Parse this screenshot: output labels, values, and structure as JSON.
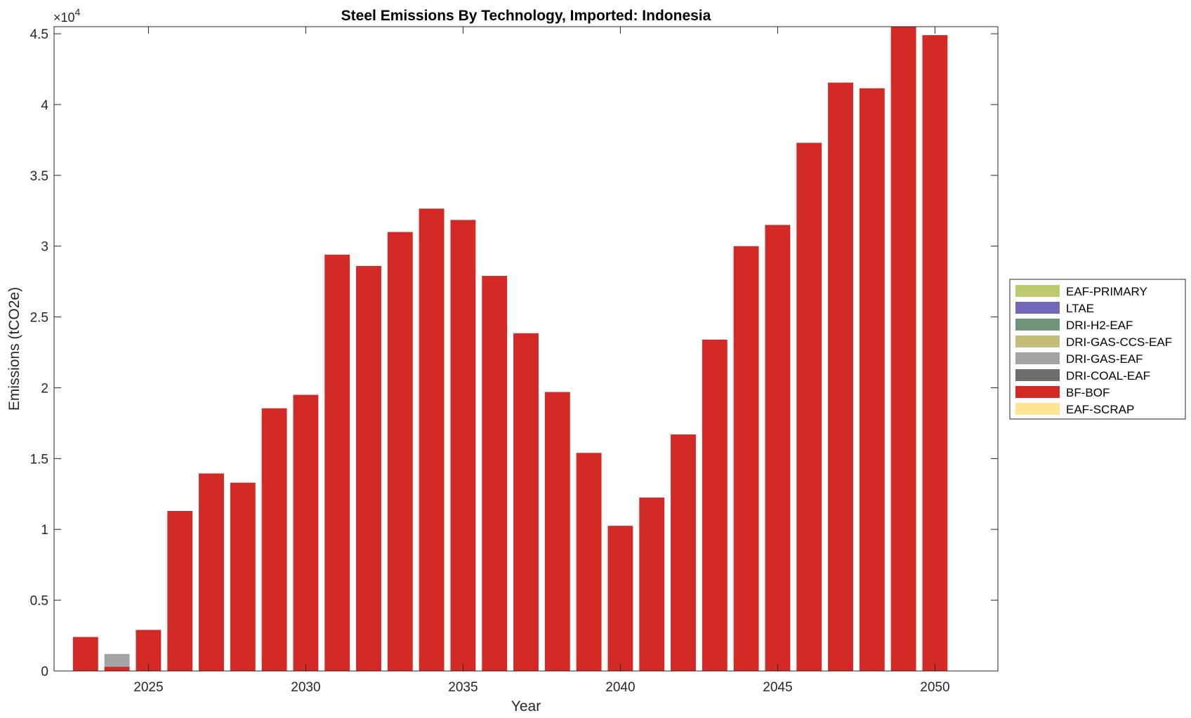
{
  "chart_data": {
    "type": "bar",
    "stacked": true,
    "title": "Steel Emissions By Technology, Imported: Indonesia",
    "xlabel": "Year",
    "ylabel": "Emissions (tCO2e)",
    "exponent_label": "×10",
    "exponent_power": "4",
    "xlim": [
      2022,
      2052
    ],
    "ylim": [
      0,
      45500
    ],
    "x_ticks": [
      2025,
      2030,
      2035,
      2040,
      2045,
      2050
    ],
    "x_tick_labels": [
      "2025",
      "2030",
      "2035",
      "2040",
      "2045",
      "2050"
    ],
    "y_ticks": [
      0,
      5000,
      10000,
      15000,
      20000,
      25000,
      30000,
      35000,
      40000,
      45000
    ],
    "y_tick_labels": [
      "0",
      "0.5",
      "1",
      "1.5",
      "2",
      "2.5",
      "3",
      "3.5",
      "4",
      "4.5"
    ],
    "grid": false,
    "legend_position": "outside-right",
    "categories": [
      2023,
      2024,
      2025,
      2026,
      2027,
      2028,
      2029,
      2030,
      2031,
      2032,
      2033,
      2034,
      2035,
      2036,
      2037,
      2038,
      2039,
      2040,
      2041,
      2042,
      2043,
      2044,
      2045,
      2046,
      2047,
      2048,
      2049,
      2050
    ],
    "series": [
      {
        "name": "EAF-SCRAP",
        "color": "#fee391",
        "values": [
          0,
          0,
          0,
          0,
          0,
          0,
          0,
          0,
          0,
          0,
          0,
          0,
          0,
          0,
          0,
          0,
          0,
          0,
          0,
          0,
          0,
          0,
          0,
          0,
          0,
          0,
          0,
          0
        ]
      },
      {
        "name": "BF-BOF",
        "color": "#d42a25",
        "values": [
          2400,
          300,
          2900,
          11300,
          13950,
          13300,
          18550,
          19500,
          29400,
          28600,
          31000,
          32650,
          31850,
          27900,
          23850,
          19700,
          15400,
          10250,
          12250,
          16700,
          23400,
          30000,
          31500,
          37300,
          41550,
          41150,
          45600,
          44900
        ]
      },
      {
        "name": "DRI-COAL-EAF",
        "color": "#6e6e6e",
        "values": [
          0,
          0,
          0,
          0,
          0,
          0,
          0,
          0,
          0,
          0,
          0,
          0,
          0,
          0,
          0,
          0,
          0,
          0,
          0,
          0,
          0,
          0,
          0,
          0,
          0,
          0,
          0,
          0
        ]
      },
      {
        "name": "DRI-GAS-EAF",
        "color": "#a3a3a3",
        "values": [
          0,
          900,
          0,
          0,
          0,
          0,
          0,
          0,
          0,
          0,
          0,
          0,
          0,
          0,
          0,
          0,
          0,
          0,
          0,
          0,
          0,
          0,
          0,
          0,
          0,
          0,
          0,
          0
        ]
      },
      {
        "name": "DRI-GAS-CCS-EAF",
        "color": "#c6bc7a",
        "values": [
          0,
          0,
          0,
          0,
          0,
          0,
          0,
          0,
          0,
          0,
          0,
          0,
          0,
          0,
          0,
          0,
          0,
          0,
          0,
          0,
          0,
          0,
          0,
          0,
          0,
          0,
          0,
          0
        ]
      },
      {
        "name": "DRI-H2-EAF",
        "color": "#6f9479",
        "values": [
          0,
          0,
          0,
          0,
          0,
          0,
          0,
          0,
          0,
          0,
          0,
          0,
          0,
          0,
          0,
          0,
          0,
          0,
          0,
          0,
          0,
          0,
          0,
          0,
          0,
          0,
          0,
          0
        ]
      },
      {
        "name": "LTAE",
        "color": "#7268b8",
        "values": [
          0,
          0,
          0,
          0,
          0,
          0,
          0,
          0,
          0,
          0,
          0,
          0,
          0,
          0,
          0,
          0,
          0,
          0,
          0,
          0,
          0,
          0,
          0,
          0,
          0,
          0,
          0,
          0
        ]
      },
      {
        "name": "EAF-PRIMARY",
        "color": "#bcc96d",
        "values": [
          0,
          0,
          0,
          0,
          0,
          0,
          0,
          0,
          0,
          0,
          0,
          0,
          0,
          0,
          0,
          0,
          0,
          0,
          0,
          0,
          0,
          0,
          0,
          0,
          0,
          0,
          0,
          0
        ]
      }
    ],
    "legend_order": [
      "EAF-PRIMARY",
      "LTAE",
      "DRI-H2-EAF",
      "DRI-GAS-CCS-EAF",
      "DRI-GAS-EAF",
      "DRI-COAL-EAF",
      "BF-BOF",
      "EAF-SCRAP"
    ]
  }
}
